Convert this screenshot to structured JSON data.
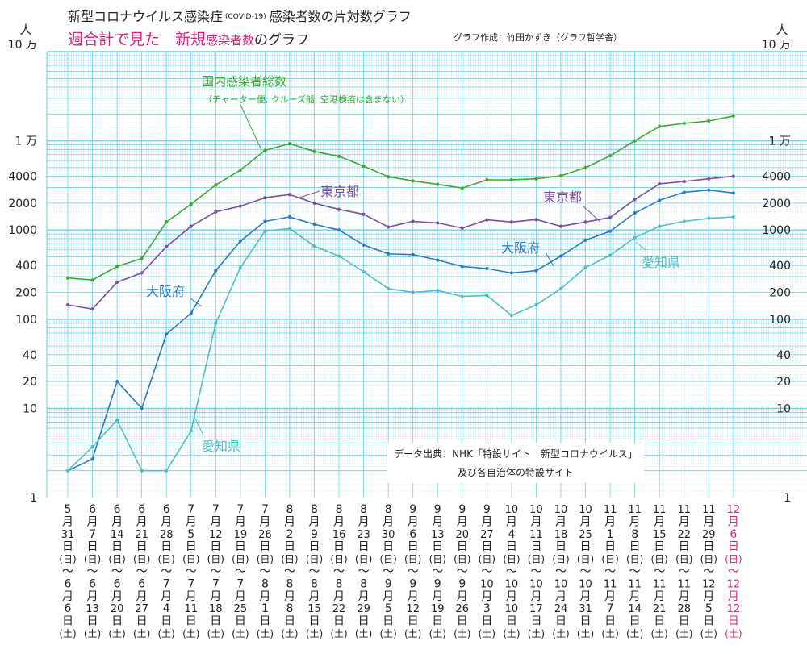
{
  "header": {
    "title_main": "新型コロナウイルス感染症",
    "title_covid": "(COVID-19)",
    "title_rest": "感染者数の片対数グラフ",
    "subtitle_pink": "週合計で見た　新規",
    "subtitle_small": "感染者数",
    "subtitle_end": "のグラフ",
    "credit": "グラフ作成：竹田かずき（グラフ哲学舎）"
  },
  "source_note": {
    "line1": "データ出典：NHK「特設サイト　新型コロナウイルス」",
    "line2": "及び各自治体の特設サイト"
  },
  "colors": {
    "grid": "#6cd0ea",
    "grid_fine": "#b8e6f4",
    "national": "#3aaa35",
    "tokyo": "#7b4fa0",
    "osaka": "#2a7bbf",
    "aichi": "#4dbfc4",
    "highlight": "#d6247c"
  },
  "chart_data": {
    "type": "line",
    "title": "新型コロナウイルス感染症(COVID-19) 感染者数の片対数グラフ",
    "subtitle": "週合計で見た 新規感染者数のグラフ",
    "yscale": "log",
    "ylim": [
      1,
      100000
    ],
    "yunit_label": "人",
    "y_ticks": [
      {
        "value": 100000,
        "label": "10 万"
      },
      {
        "value": 10000,
        "label": "1 万"
      },
      {
        "value": 4000,
        "label": "4000"
      },
      {
        "value": 2000,
        "label": "2000"
      },
      {
        "value": 1000,
        "label": "1000"
      },
      {
        "value": 400,
        "label": "400"
      },
      {
        "value": 200,
        "label": "200"
      },
      {
        "value": 100,
        "label": "100"
      },
      {
        "value": 40,
        "label": "40"
      },
      {
        "value": 20,
        "label": "20"
      },
      {
        "value": 10,
        "label": "10"
      },
      {
        "value": 1,
        "label": "1"
      }
    ],
    "categories": [
      "5月31日(日)〜6月6日(土)",
      "6月7日(日)〜6月13日(土)",
      "6月14日(日)〜6月20日(土)",
      "6月21日(日)〜6月27日(土)",
      "6月28日(日)〜7月4日(土)",
      "7月5日(日)〜7月11日(土)",
      "7月12日(日)〜7月18日(土)",
      "7月19日(日)〜7月25日(土)",
      "7月26日(日)〜8月1日(土)",
      "8月2日(日)〜8月8日(土)",
      "8月9日(日)〜8月15日(土)",
      "8月16日(日)〜8月22日(土)",
      "8月23日(日)〜8月29日(土)",
      "8月30日(日)〜9月5日(土)",
      "9月6日(日)〜9月12日(土)",
      "9月13日(日)〜9月19日(土)",
      "9月20日(日)〜9月26日(土)",
      "9月27日(日)〜10月3日(土)",
      "10月4日(日)〜10月10日(土)",
      "10月11日(日)〜10月17日(土)",
      "10月18日(日)〜10月24日(土)",
      "10月25日(日)〜10月31日(土)",
      "11月1日(日)〜11月7日(土)",
      "11月8日(日)〜11月14日(土)",
      "11月15日(日)〜11月21日(土)",
      "11月22日(日)〜11月28日(土)",
      "11月29日(日)〜12月5日(土)",
      "12月6日(日)〜12月12日(土)"
    ],
    "category_columns": [
      [
        "5",
        "月",
        "31",
        "日",
        "(日)",
        "〜",
        "6",
        "月",
        "6",
        "日",
        "(土)"
      ],
      [
        "6",
        "月",
        "7",
        "日",
        "(日)",
        "〜",
        "6",
        "月",
        "13",
        "日",
        "(土)"
      ],
      [
        "6",
        "月",
        "14",
        "日",
        "(日)",
        "〜",
        "6",
        "月",
        "20",
        "日",
        "(土)"
      ],
      [
        "6",
        "月",
        "21",
        "日",
        "(日)",
        "〜",
        "6",
        "月",
        "27",
        "日",
        "(土)"
      ],
      [
        "6",
        "月",
        "28",
        "日",
        "(日)",
        "〜",
        "7",
        "月",
        "4",
        "日",
        "(土)"
      ],
      [
        "7",
        "月",
        "5",
        "日",
        "(日)",
        "〜",
        "7",
        "月",
        "11",
        "日",
        "(土)"
      ],
      [
        "7",
        "月",
        "12",
        "日",
        "(日)",
        "〜",
        "7",
        "月",
        "18",
        "日",
        "(土)"
      ],
      [
        "7",
        "月",
        "19",
        "日",
        "(日)",
        "〜",
        "7",
        "月",
        "25",
        "日",
        "(土)"
      ],
      [
        "7",
        "月",
        "26",
        "日",
        "(日)",
        "〜",
        "8",
        "月",
        "1",
        "日",
        "(土)"
      ],
      [
        "8",
        "月",
        "2",
        "日",
        "(日)",
        "〜",
        "8",
        "月",
        "8",
        "日",
        "(土)"
      ],
      [
        "8",
        "月",
        "9",
        "日",
        "(日)",
        "〜",
        "8",
        "月",
        "15",
        "日",
        "(土)"
      ],
      [
        "8",
        "月",
        "16",
        "日",
        "(日)",
        "〜",
        "8",
        "月",
        "22",
        "日",
        "(土)"
      ],
      [
        "8",
        "月",
        "23",
        "日",
        "(日)",
        "〜",
        "8",
        "月",
        "29",
        "日",
        "(土)"
      ],
      [
        "8",
        "月",
        "30",
        "日",
        "(日)",
        "〜",
        "9",
        "月",
        "5",
        "日",
        "(土)"
      ],
      [
        "9",
        "月",
        "6",
        "日",
        "(日)",
        "〜",
        "9",
        "月",
        "12",
        "日",
        "(土)"
      ],
      [
        "9",
        "月",
        "13",
        "日",
        "(日)",
        "〜",
        "9",
        "月",
        "19",
        "日",
        "(土)"
      ],
      [
        "9",
        "月",
        "20",
        "日",
        "(日)",
        "〜",
        "9",
        "月",
        "26",
        "日",
        "(土)"
      ],
      [
        "9",
        "月",
        "27",
        "日",
        "(日)",
        "〜",
        "10",
        "月",
        "3",
        "日",
        "(土)"
      ],
      [
        "10",
        "月",
        "4",
        "日",
        "(日)",
        "〜",
        "10",
        "月",
        "10",
        "日",
        "(土)"
      ],
      [
        "10",
        "月",
        "11",
        "日",
        "(日)",
        "〜",
        "10",
        "月",
        "17",
        "日",
        "(土)"
      ],
      [
        "10",
        "月",
        "18",
        "日",
        "(日)",
        "〜",
        "10",
        "月",
        "24",
        "日",
        "(土)"
      ],
      [
        "10",
        "月",
        "25",
        "日",
        "(日)",
        "〜",
        "10",
        "月",
        "31",
        "日",
        "(土)"
      ],
      [
        "11",
        "月",
        "1",
        "日",
        "(日)",
        "〜",
        "11",
        "月",
        "7",
        "日",
        "(土)"
      ],
      [
        "11",
        "月",
        "8",
        "日",
        "(日)",
        "〜",
        "11",
        "月",
        "14",
        "日",
        "(土)"
      ],
      [
        "11",
        "月",
        "15",
        "日",
        "(日)",
        "〜",
        "11",
        "月",
        "21",
        "日",
        "(土)"
      ],
      [
        "11",
        "月",
        "22",
        "日",
        "(日)",
        "〜",
        "11",
        "月",
        "28",
        "日",
        "(土)"
      ],
      [
        "11",
        "月",
        "29",
        "日",
        "(日)",
        "〜",
        "12",
        "月",
        "5",
        "日",
        "(土)"
      ],
      [
        "12",
        "月",
        "6",
        "日",
        "(日)",
        "〜",
        "12",
        "月",
        "12",
        "日",
        "(土)"
      ]
    ],
    "highlight_last_category": true,
    "series": [
      {
        "name": "国内感染者総数",
        "note": "（チャーター便, クルーズ船, 空港検疫は含まない）",
        "color": "#3aaa35",
        "values": [
          290,
          275,
          390,
          480,
          1230,
          1950,
          3200,
          4700,
          7800,
          9300,
          7600,
          6700,
          5200,
          3950,
          3550,
          3250,
          2950,
          3650,
          3650,
          3750,
          4050,
          5000,
          6800,
          10000,
          14500,
          15700,
          16700,
          19000
        ]
      },
      {
        "name": "東京都",
        "color": "#7b4fa0",
        "values": [
          145,
          130,
          260,
          330,
          650,
          1100,
          1600,
          1850,
          2300,
          2500,
          2000,
          1700,
          1500,
          1080,
          1250,
          1200,
          1050,
          1300,
          1230,
          1310,
          1100,
          1230,
          1380,
          2200,
          3300,
          3500,
          3750,
          4000
        ]
      },
      {
        "name": "大阪府",
        "color": "#2a7bbf",
        "values": [
          2,
          2.7,
          20,
          10,
          68,
          117,
          350,
          750,
          1250,
          1400,
          1160,
          1000,
          680,
          540,
          530,
          460,
          390,
          370,
          330,
          350,
          510,
          770,
          970,
          1550,
          2150,
          2650,
          2800,
          2600
        ]
      },
      {
        "name": "愛知県",
        "color": "#4dbfc4",
        "values": [
          2,
          3.7,
          7.4,
          2,
          2,
          5.6,
          90,
          380,
          970,
          1040,
          660,
          510,
          340,
          220,
          200,
          210,
          180,
          185,
          110,
          145,
          220,
          380,
          520,
          820,
          1100,
          1250,
          1350,
          1400
        ]
      }
    ],
    "annotations": [
      {
        "series": "国内感染者総数",
        "text": "国内感染者総数"
      },
      {
        "series": "東京都",
        "text": "東京都",
        "position": "middle"
      },
      {
        "series": "東京都",
        "text": "東京都",
        "position": "right"
      },
      {
        "series": "大阪府",
        "text": "大阪府",
        "position": "left"
      },
      {
        "series": "大阪府",
        "text": "大阪府",
        "position": "right"
      },
      {
        "series": "愛知県",
        "text": "愛知県",
        "position": "left"
      },
      {
        "series": "愛知県",
        "text": "愛知県",
        "position": "right"
      }
    ]
  }
}
